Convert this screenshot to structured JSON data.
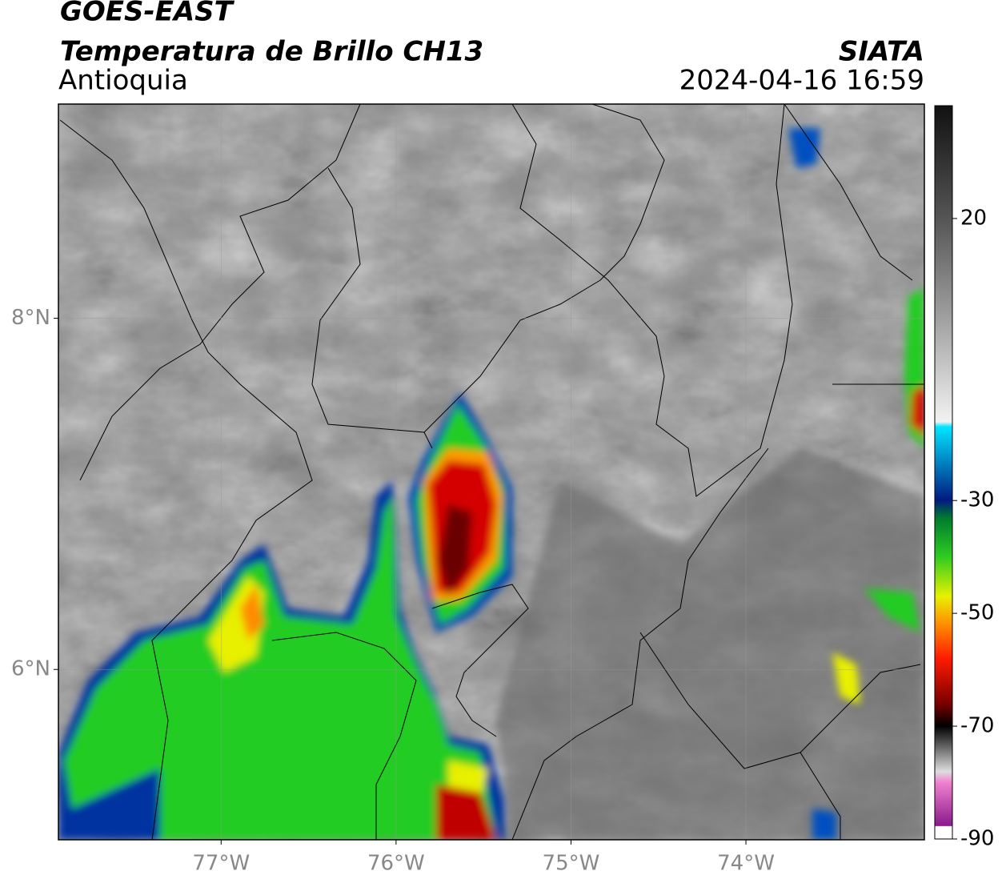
{
  "header": {
    "title": "GOES-EAST",
    "subtitle": "Temperatura de Brillo CH13",
    "region": "Antioquia",
    "source": "SIATA",
    "datetime": "2024-04-16 16:59"
  },
  "map": {
    "lonlim": [
      -77.93,
      -72.98
    ],
    "latlim": [
      5.03,
      9.22
    ],
    "lon_ticks": [
      {
        "value": -77,
        "label": "77°W"
      },
      {
        "value": -76,
        "label": "76°W"
      },
      {
        "value": -75,
        "label": "75°W"
      },
      {
        "value": -74,
        "label": "74°W"
      }
    ],
    "lat_ticks": [
      {
        "value": 8,
        "label": "8°N"
      },
      {
        "value": 6,
        "label": "6°N"
      }
    ],
    "grid": true
  },
  "colorbar": {
    "range": [
      -90,
      40
    ],
    "ticks": [
      20,
      -30,
      -50,
      -70,
      -90
    ]
  }
}
